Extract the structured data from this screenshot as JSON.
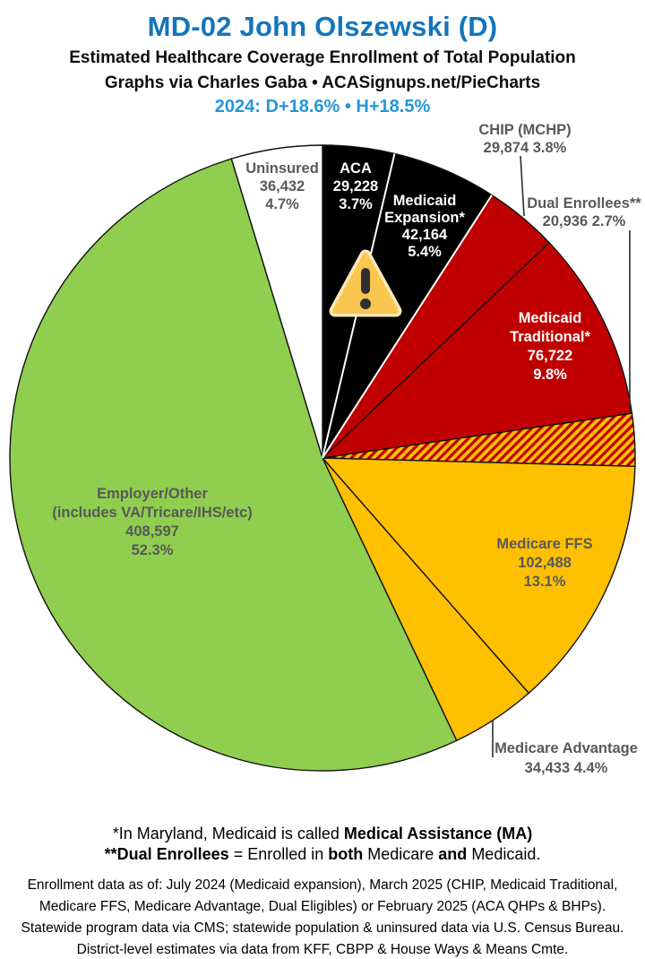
{
  "header": {
    "title": "MD-02 John Olszewski (D)",
    "subtitle1": "Estimated Healthcare Coverage Enrollment of Total Population",
    "subtitle2": "Graphs via Charles Gaba  •  ACASignups.net/PieCharts",
    "subtitle3": "2024: D+18.6%  •  H+18.5%",
    "title_color": "#1375BC",
    "subtitle3_color": "#2496D8"
  },
  "chart_data": {
    "type": "pie",
    "title": "Estimated Healthcare Coverage Enrollment of Total Population",
    "direction": "clockwise",
    "start_angle_deg": 0,
    "labels_on_chart": true,
    "legend": "none",
    "white_divider_after_slices": [
      0,
      1
    ],
    "slices": [
      {
        "id": "aca",
        "label": "ACA",
        "value": 29228,
        "value_text": "29,228",
        "percent": 3.7,
        "percent_text": "3.7%",
        "color": "#000000",
        "text_color": "#FFFFFF"
      },
      {
        "id": "medicaid-expansion",
        "label": "Medicaid Expansion*",
        "label_lines": [
          "Medicaid",
          "Expansion*"
        ],
        "value": 42164,
        "value_text": "42,164",
        "percent": 5.4,
        "percent_text": "5.4%",
        "color": "#000000",
        "text_color": "#FFFFFF"
      },
      {
        "id": "chip",
        "label": "CHIP (MCHP)",
        "value": 29874,
        "value_text": "29,874",
        "percent": 3.8,
        "percent_text": "3.8%",
        "color": "#C00000",
        "text_color": "#58595B",
        "label_outside": true
      },
      {
        "id": "medicaid-traditional",
        "label": "Medicaid Traditional*",
        "label_lines": [
          "Medicaid",
          "Traditional*"
        ],
        "value": 76722,
        "value_text": "76,722",
        "percent": 9.8,
        "percent_text": "9.8%",
        "color": "#C00000",
        "text_color": "#FFFFFF"
      },
      {
        "id": "dual-enrollees",
        "label": "Dual Enrollees**",
        "value": 20936,
        "value_text": "20,936",
        "percent": 2.7,
        "percent_text": "2.7%",
        "color": "#FFC000",
        "hatch": true,
        "hatch_stripe_color": "#C00000",
        "text_color": "#58595B",
        "label_outside": true
      },
      {
        "id": "medicare-ffs",
        "label": "Medicare FFS",
        "value": 102488,
        "value_text": "102,488",
        "percent": 13.1,
        "percent_text": "13.1%",
        "color": "#FFC000",
        "text_color": "#58595B"
      },
      {
        "id": "medicare-advantage",
        "label": "Medicare Advantage",
        "value": 34433,
        "value_text": "34,433",
        "percent": 4.4,
        "percent_text": "4.4%",
        "color": "#FFC000",
        "text_color": "#58595B",
        "label_outside": true
      },
      {
        "id": "employer-other",
        "label": "Employer/Other (includes VA/Tricare/IHS/etc)",
        "label_lines": [
          "Employer/Other",
          "(includes VA/Tricare/IHS/etc)"
        ],
        "value": 408597,
        "value_text": "408,597",
        "percent": 52.3,
        "percent_text": "52.3%",
        "color": "#8FCE4E",
        "text_color": "#58595B"
      },
      {
        "id": "uninsured",
        "label": "Uninsured",
        "value": 36432,
        "value_text": "36,432",
        "percent": 4.7,
        "percent_text": "4.7%",
        "color": "#FFFFFF",
        "text_color": "#58595B"
      }
    ]
  },
  "warning_icon": {
    "name": "warning-triangle",
    "fill": "#F9C74F",
    "border": "#FDE9B8",
    "glyph_color": "#2F2F2F"
  },
  "footnotes": {
    "line1_segments": [
      {
        "text": "*In Maryland, Medicaid is called ",
        "bold": false
      },
      {
        "text": "Medical Assistance (MA)",
        "bold": true
      }
    ],
    "line2_segments": [
      {
        "text": "**Dual Enrollees",
        "bold": true
      },
      {
        "text": " = Enrolled in ",
        "bold": false
      },
      {
        "text": "both",
        "bold": true
      },
      {
        "text": " Medicare ",
        "bold": false
      },
      {
        "text": "and",
        "bold": true
      },
      {
        "text": " Medicaid.",
        "bold": false
      }
    ],
    "source_lines": [
      "Enrollment data as of: July 2024 (Medicaid expansion), March 2025 (CHIP, Medicaid Traditional,",
      "Medicare FFS, Medicare Advantage, Dual Eligibles) or February 2025 (ACA QHPs & BHPs).",
      "Statewide program data via CMS; statewide population & uninsured data via U.S. Census Bureau.",
      "District-level estimates via data from KFF, CBPP & House Ways & Means Cmte."
    ]
  }
}
